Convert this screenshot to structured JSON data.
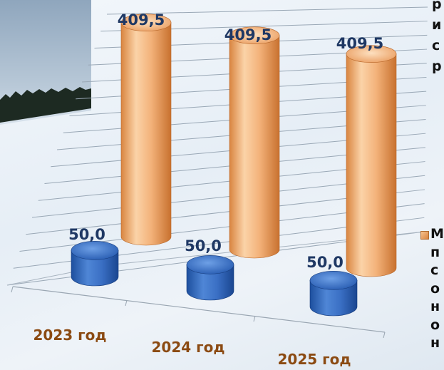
{
  "chart_data": {
    "type": "bar",
    "style": "3d-cylinder",
    "categories": [
      "2023 год",
      "2024 год",
      "2025 год"
    ],
    "series": [
      {
        "values": [
          50.0,
          50.0,
          50.0
        ],
        "labels": [
          "50,0",
          "50,0",
          "50,0"
        ],
        "color": "#3a6fc4"
      },
      {
        "values": [
          409.5,
          409.5,
          409.5
        ],
        "labels": [
          "409,5",
          "409,5",
          "409,5"
        ],
        "color": "#f0a868"
      }
    ],
    "category_label_color": "#8b4a12",
    "data_label_color": "#1f3864",
    "grid": true,
    "legend": "right"
  }
}
